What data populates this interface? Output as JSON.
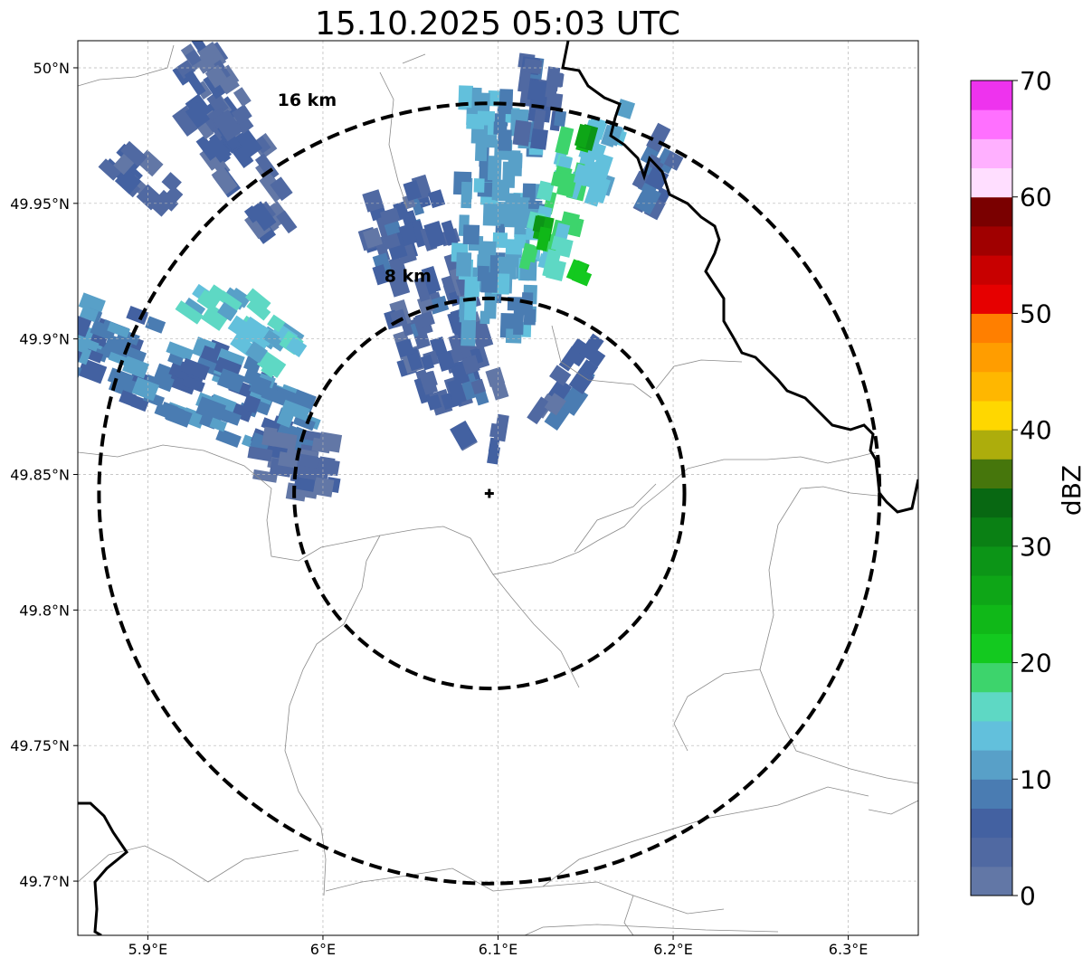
{
  "title": "15.10.2025 05:03 UTC",
  "map": {
    "lon_range": [
      5.86,
      6.34
    ],
    "lat_range": [
      49.68,
      50.01
    ],
    "x_ticks": [
      {
        "lon": 5.9,
        "label": "5.9°E"
      },
      {
        "lon": 6.0,
        "label": "6°E"
      },
      {
        "lon": 6.1,
        "label": "6.1°E"
      },
      {
        "lon": 6.2,
        "label": "6.2°E"
      },
      {
        "lon": 6.3,
        "label": "6.3°E"
      }
    ],
    "y_ticks": [
      {
        "lat": 50.0,
        "label": "50°N"
      },
      {
        "lat": 49.95,
        "label": "49.95°N"
      },
      {
        "lat": 49.9,
        "label": "49.9°N"
      },
      {
        "lat": 49.85,
        "label": "49.85°N"
      },
      {
        "lat": 49.8,
        "label": "49.8°N"
      },
      {
        "lat": 49.75,
        "label": "49.75°N"
      },
      {
        "lat": 49.7,
        "label": "49.7°N"
      }
    ],
    "gridlines": true,
    "radar_site": {
      "lon": 6.095,
      "lat": 49.843
    },
    "range_rings": [
      {
        "radius_km": 8,
        "label": "8 km",
        "label_pos": {
          "lon": 6.035,
          "lat": 49.921
        }
      },
      {
        "radius_km": 16,
        "label": "16 km",
        "label_pos": {
          "lon": 5.974,
          "lat": 49.986
        }
      }
    ]
  },
  "colorbar": {
    "label": "dBZ",
    "min": 0,
    "max": 70,
    "step": 2.5,
    "ticks": [
      "0",
      "10",
      "20",
      "30",
      "40",
      "50",
      "60",
      "70"
    ],
    "colors": [
      "#6277a6",
      "#5069a2",
      "#4361a1",
      "#4a7cb2",
      "#58a0c8",
      "#62c0dc",
      "#5ed8c4",
      "#3dd46c",
      "#13c91f",
      "#10b818",
      "#0ea617",
      "#0c9517",
      "#0a8014",
      "#086812",
      "#46760c",
      "#adad0c",
      "#ffd700",
      "#ffb700",
      "#ff9d00",
      "#ff7f00",
      "#e60000",
      "#c80000",
      "#a00000",
      "#7a0000",
      "#ffdeff",
      "#ffb0ff",
      "#ff70ff",
      "#ee33ee"
    ]
  },
  "echoes": [
    {
      "lon": 5.925,
      "lat": 49.885,
      "along_km": 10.5,
      "across_km": 3.4,
      "dbz": 9
    },
    {
      "lon": 5.955,
      "lat": 49.905,
      "along_km": 5.0,
      "across_km": 1.8,
      "dbz": 14
    },
    {
      "lon": 5.9,
      "lat": 49.958,
      "along_km": 3.2,
      "across_km": 1.4,
      "dbz": 4
    },
    {
      "lon": 5.955,
      "lat": 49.965,
      "along_km": 6.0,
      "across_km": 2.2,
      "dbz": 4
    },
    {
      "lon": 5.94,
      "lat": 49.992,
      "along_km": 4.5,
      "across_km": 1.6,
      "dbz": 4
    },
    {
      "lon": 5.985,
      "lat": 49.855,
      "along_km": 3.5,
      "across_km": 2.6,
      "dbz": 4
    },
    {
      "lon": 6.06,
      "lat": 49.915,
      "along_km": 9.0,
      "across_km": 3.4,
      "dbz": 5
    },
    {
      "lon": 6.1,
      "lat": 49.945,
      "along_km": 10.0,
      "across_km": 3.2,
      "dbz": 11
    },
    {
      "lon": 6.135,
      "lat": 49.95,
      "along_km": 5.5,
      "across_km": 1.6,
      "dbz": 16
    },
    {
      "lon": 6.16,
      "lat": 49.97,
      "along_km": 4.0,
      "across_km": 1.6,
      "dbz": 12
    },
    {
      "lon": 6.14,
      "lat": 49.885,
      "along_km": 3.5,
      "across_km": 1.4,
      "dbz": 5
    },
    {
      "lon": 6.125,
      "lat": 49.99,
      "along_km": 4.0,
      "across_km": 1.8,
      "dbz": 6
    },
    {
      "lon": 6.19,
      "lat": 49.96,
      "along_km": 3.0,
      "across_km": 1.3,
      "dbz": 6
    },
    {
      "lon": 6.1,
      "lat": 49.863,
      "along_km": 1.6,
      "across_km": 0.9,
      "dbz": 3
    },
    {
      "lon": 6.08,
      "lat": 49.86,
      "along_km": 1.2,
      "across_km": 0.8,
      "dbz": 3
    },
    {
      "lon": 6.15,
      "lat": 49.974,
      "along_km": 0.9,
      "across_km": 0.5,
      "dbz": 26
    },
    {
      "lon": 6.125,
      "lat": 49.94,
      "along_km": 0.7,
      "across_km": 0.4,
      "dbz": 27
    },
    {
      "lon": 6.147,
      "lat": 49.924,
      "along_km": 0.6,
      "across_km": 0.4,
      "dbz": 23
    },
    {
      "lon": 5.965,
      "lat": 49.912,
      "along_km": 0.7,
      "across_km": 0.4,
      "dbz": 19
    },
    {
      "lon": 6.135,
      "lat": 49.955,
      "along_km": 1.2,
      "across_km": 0.6,
      "dbz": 18
    }
  ]
}
